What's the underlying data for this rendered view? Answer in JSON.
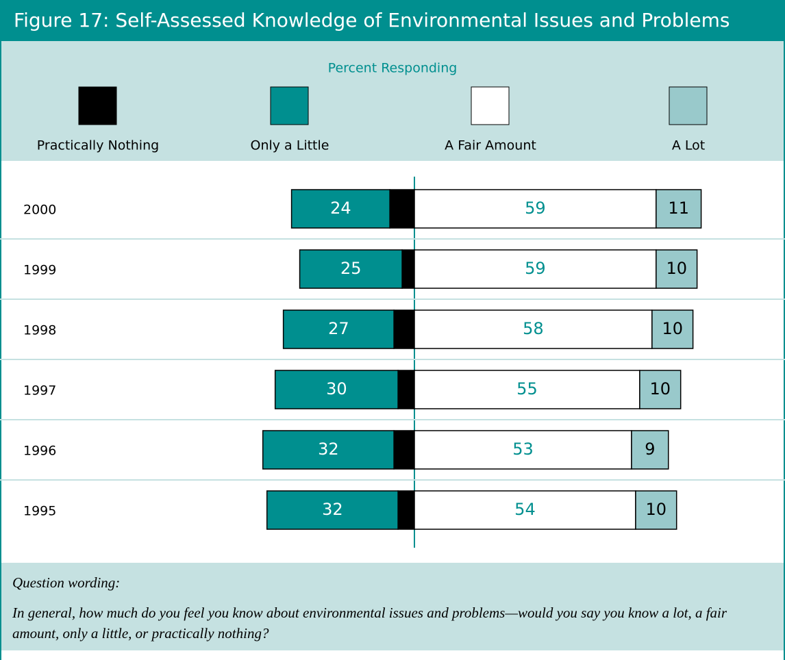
{
  "chart_data": {
    "type": "diverging_bar",
    "title": "Figure 17: Self-Assessed Knowledge of Environmental Issues and Problems",
    "subtitle": "Percent Responding",
    "categories": [
      "2000",
      "1999",
      "1998",
      "1997",
      "1996",
      "1995"
    ],
    "series": [
      {
        "name": "Practically Nothing",
        "color": "#000000",
        "values": [
          6,
          3,
          5,
          4,
          5,
          4
        ]
      },
      {
        "name": "Only a Little",
        "color": "#008f8f",
        "values": [
          24,
          25,
          27,
          30,
          32,
          32
        ]
      },
      {
        "name": "A Fair Amount",
        "color": "#ffffff",
        "values": [
          59,
          59,
          58,
          55,
          53,
          54
        ]
      },
      {
        "name": "A Lot",
        "color": "#99c9cb",
        "values": [
          11,
          10,
          10,
          10,
          9,
          10
        ]
      }
    ],
    "note_title": "Question wording:",
    "note": "In general, how much do you feel you know about environmental issues and problems—would you say you know a lot, a fair amount, only a little, or practically nothing?"
  }
}
